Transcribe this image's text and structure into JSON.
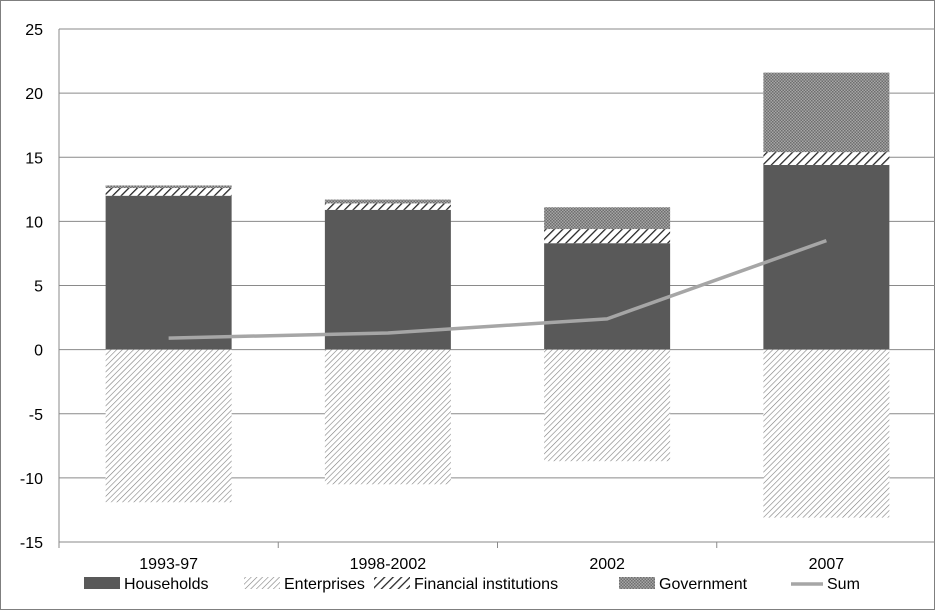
{
  "chart_data": {
    "type": "bar",
    "stacked": true,
    "categories": [
      "1993-97",
      "1998-2002",
      "2002",
      "2007"
    ],
    "series": [
      {
        "name": "Households",
        "kind": "bar",
        "values": [
          12.0,
          10.9,
          8.3,
          14.4
        ]
      },
      {
        "name": "Enterprises",
        "kind": "bar",
        "values": [
          -11.9,
          -10.5,
          -8.7,
          -13.1
        ]
      },
      {
        "name": "Financial institutions",
        "kind": "bar",
        "values": [
          0.6,
          0.5,
          1.1,
          1.0
        ]
      },
      {
        "name": "Government",
        "kind": "bar",
        "values": [
          0.2,
          0.3,
          1.7,
          6.2
        ]
      },
      {
        "name": "Sum",
        "kind": "line",
        "values": [
          0.9,
          1.3,
          2.4,
          8.5
        ]
      }
    ],
    "ylim": [
      -15,
      25
    ],
    "yticks": [
      -15,
      -10,
      -5,
      0,
      5,
      10,
      15,
      20,
      25
    ],
    "grid": true,
    "legend_position": "bottom",
    "colors": {
      "Households": "#595959",
      "Enterprises": "#7f7f7f",
      "Financial institutions": "#262626",
      "Government": "#8c8c8c",
      "Sum": "#a6a6a6",
      "grid": "#8a8a8a",
      "axis": "#8a8a8a"
    }
  }
}
